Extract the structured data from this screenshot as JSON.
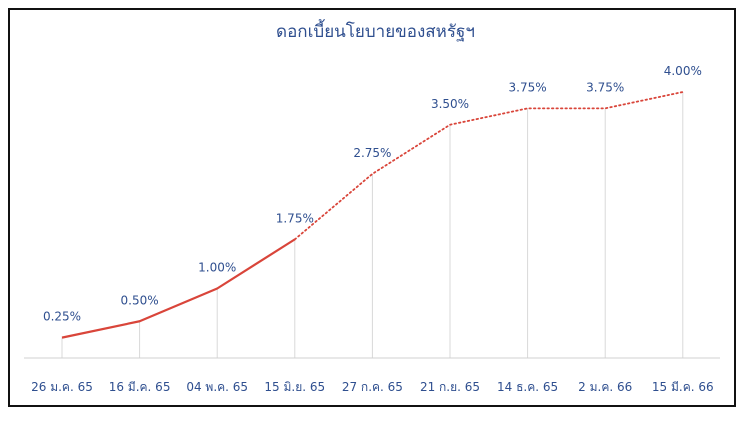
{
  "chart_data": {
    "type": "line",
    "title": "ดอกเบี้ยนโยบายของสหรัฐฯ",
    "xlabel": "",
    "ylabel": "",
    "ylim": [
      0,
      4.0
    ],
    "grid": "vertical",
    "categories": [
      "26 ม.ค. 65",
      "16 มี.ค. 65",
      "04 พ.ค. 65",
      "15 มิ.ย. 65",
      "27 ก.ค. 65",
      "21 ก.ย. 65",
      "14 ธ.ค. 65",
      "2 ม.ค. 66",
      "15 มี.ค. 66"
    ],
    "series": [
      {
        "values": [
          0.25,
          0.5,
          1.0,
          1.75,
          2.75,
          3.5,
          3.75,
          3.75,
          4.0
        ],
        "labels": [
          "0.25%",
          "0.50%",
          "1.00%",
          "1.75%",
          "2.75%",
          "3.50%",
          "3.75%",
          "3.75%",
          "4.00%"
        ],
        "color": "#d9453a",
        "actual_points": 4,
        "projected_style": "dotted"
      }
    ]
  }
}
